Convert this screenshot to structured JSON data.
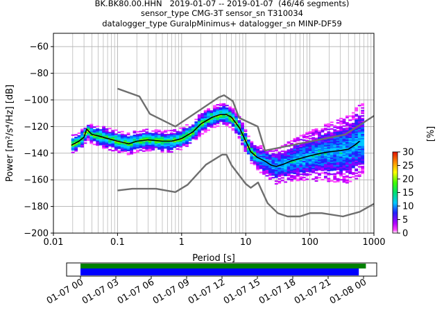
{
  "title_lines": [
    "BK.BK80.00.HHN   2019-01-07 -- 2019-01-07  (46/46 segments)",
    "sensor_type CMG-3T sensor_sn T310034",
    "datalogger_type GuralpMinimus+ datalogger_sn MINP-DF59"
  ],
  "chart_data": {
    "type": "heatmap",
    "xlabel": "Period [s]",
    "ylabel": "Power [m²/s⁴/Hz] [dB]",
    "xscale": "log",
    "xlim": [
      0.01,
      1000
    ],
    "ylim": [
      -200,
      -50
    ],
    "x_ticks": [
      0.01,
      0.1,
      1,
      10,
      100,
      1000
    ],
    "x_tick_labels": [
      "0.01",
      "0.1",
      "1",
      "10",
      "100",
      "1000"
    ],
    "y_ticks": [
      -200,
      -180,
      -160,
      -140,
      -120,
      -100,
      -80,
      -60
    ],
    "y_tick_labels": [
      "−200",
      "−180",
      "−160",
      "−140",
      "−120",
      "−100",
      "−80",
      "−60"
    ],
    "grid": true,
    "colorbar": {
      "label": "[%]",
      "min": 0,
      "max": 30,
      "ticks": [
        0,
        5,
        10,
        15,
        20,
        25,
        30
      ],
      "tick_labels": [
        "0",
        "5",
        "10",
        "15",
        "20",
        "25",
        "30"
      ]
    },
    "series": [
      {
        "style": "black mean curve",
        "x": [
          0.019,
          0.025,
          0.03,
          0.033,
          0.04,
          0.05,
          0.07,
          0.1,
          0.15,
          0.2,
          0.3,
          0.5,
          0.7,
          1,
          1.5,
          2,
          3,
          4,
          5,
          6,
          8,
          10,
          12,
          15,
          20,
          25,
          30,
          40,
          50,
          70,
          100,
          150,
          200,
          300,
          400,
          500,
          600
        ],
        "y": [
          -134,
          -131,
          -128,
          -122,
          -126,
          -127,
          -129,
          -131,
          -133,
          -131,
          -130,
          -131,
          -131,
          -129,
          -124,
          -118,
          -113,
          -111,
          -111,
          -113,
          -121,
          -131,
          -139,
          -143,
          -146,
          -149,
          -150,
          -148,
          -146,
          -144,
          -142,
          -140,
          -139,
          -138,
          -137,
          -134,
          -131
        ]
      },
      {
        "style": "gray NHNM",
        "x": [
          0.1,
          0.22,
          0.32,
          0.8,
          3.8,
          4.6,
          6.3,
          7.9,
          15.4,
          20,
          354.8,
          1000
        ],
        "y": [
          -91.5,
          -97.4,
          -110.5,
          -120,
          -98,
          -96.5,
          -101,
          -113.5,
          -120,
          -138,
          -126,
          -112
        ]
      },
      {
        "style": "gray NLNM",
        "x": [
          0.1,
          0.17,
          0.4,
          0.8,
          1.24,
          2.4,
          4.3,
          5,
          6,
          10,
          12,
          15.6,
          21.9,
          31.6,
          45,
          70,
          101,
          154,
          328,
          600,
          1000
        ],
        "y": [
          -168,
          -166.7,
          -166.7,
          -169.2,
          -163.7,
          -148.6,
          -141.1,
          -141.1,
          -149,
          -163,
          -166,
          -162,
          -177.5,
          -185,
          -187.5,
          -187.5,
          -185,
          -185,
          -187.5,
          -184,
          -178
        ]
      }
    ]
  },
  "time_bar": {
    "tick_labels": [
      "01-07 00",
      "01-07 03",
      "01-07 06",
      "01-07 09",
      "01-07 12",
      "01-07 15",
      "01-07 18",
      "01-07 21",
      "01-08 00"
    ],
    "green_range_hours": [
      0,
      24.2
    ],
    "blue_range_hours": [
      0,
      23.6
    ]
  }
}
